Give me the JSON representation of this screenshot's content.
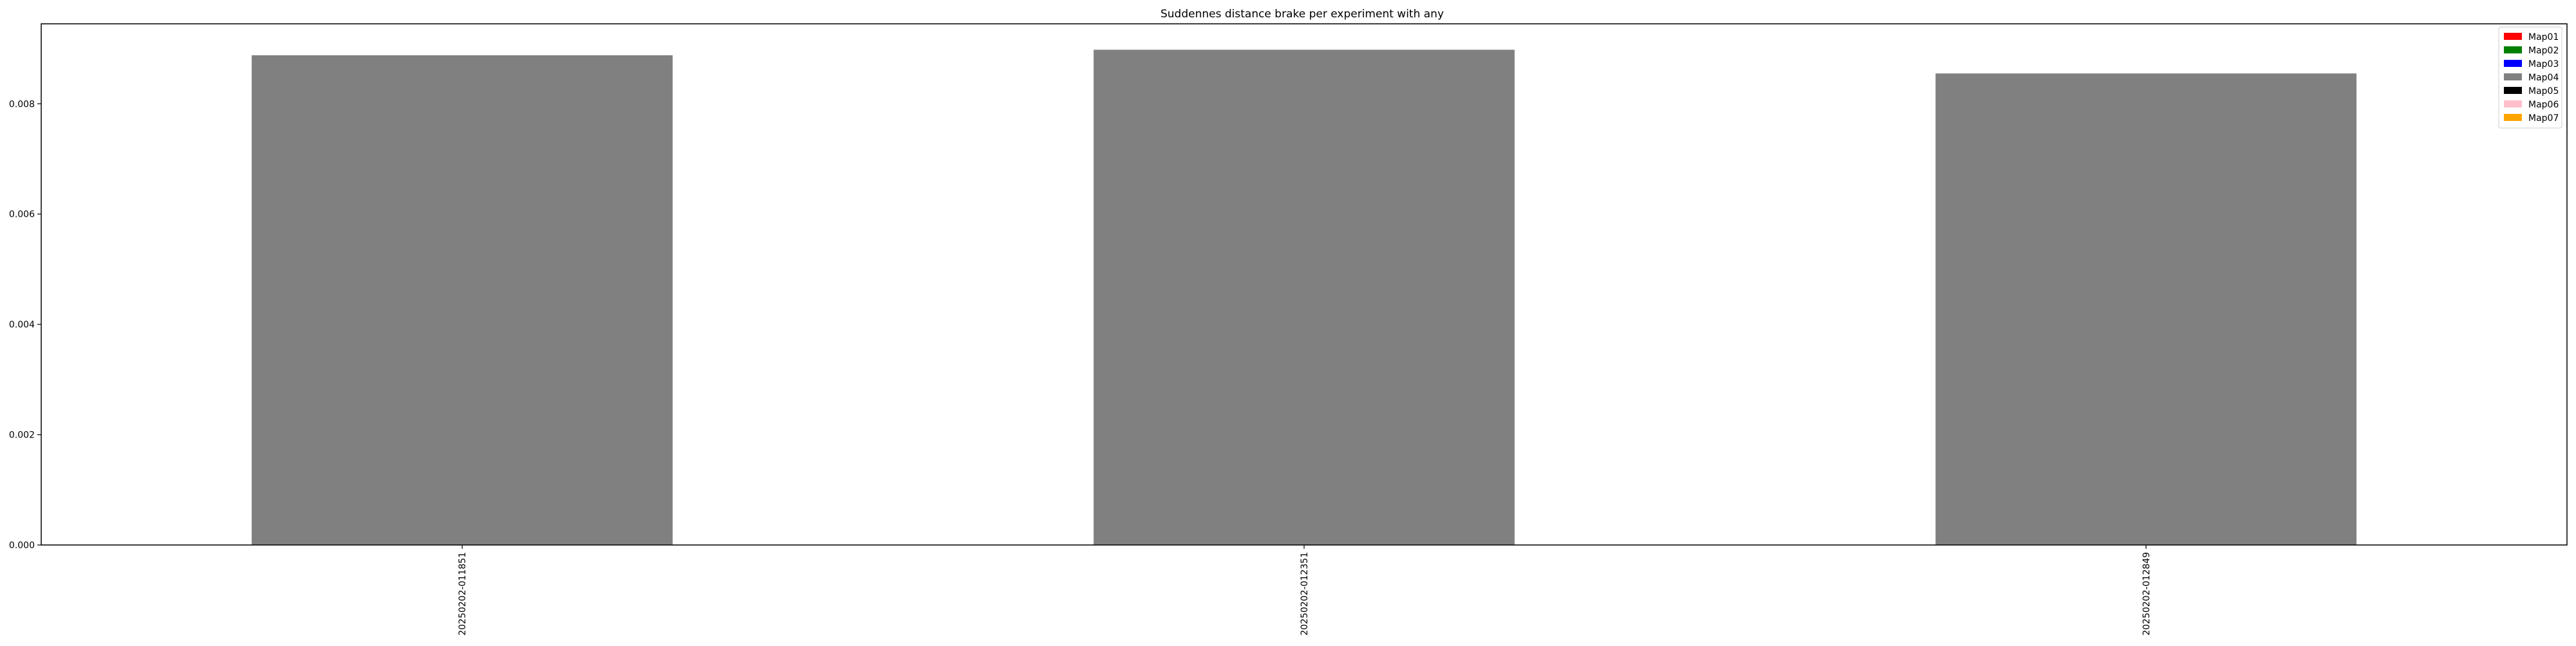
{
  "chart_data": {
    "type": "bar",
    "title": "Suddennes distance brake per experiment with any",
    "xlabel": "",
    "ylabel": "",
    "categories": [
      "20250202-011851",
      "20250202-012351",
      "20250202-012849"
    ],
    "series": [
      {
        "name": "Map04",
        "color": "#808080",
        "values": [
          0.00888,
          0.00898,
          0.00855
        ]
      }
    ],
    "ylim": [
      0,
      0.00945
    ],
    "yticks": [
      {
        "value": 0,
        "label": "0.000"
      },
      {
        "value": 0.002,
        "label": "0.002"
      },
      {
        "value": 0.004,
        "label": "0.004"
      },
      {
        "value": 0.006,
        "label": "0.006"
      },
      {
        "value": 0.008,
        "label": "0.008"
      }
    ],
    "grid": false,
    "legend": {
      "placement": "top-right",
      "entries": [
        {
          "label": "Map01",
          "color": "#ff0000"
        },
        {
          "label": "Map02",
          "color": "#008000"
        },
        {
          "label": "Map03",
          "color": "#0000ff"
        },
        {
          "label": "Map04",
          "color": "#808080"
        },
        {
          "label": "Map05",
          "color": "#000000"
        },
        {
          "label": "Map06",
          "color": "#ffc0cb"
        },
        {
          "label": "Map07",
          "color": "#ffa500"
        }
      ]
    }
  }
}
